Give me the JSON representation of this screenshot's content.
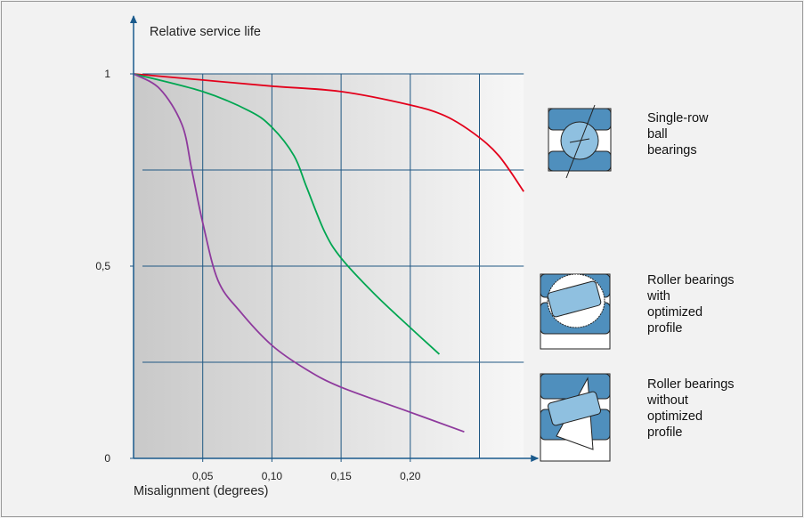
{
  "chart_data": {
    "type": "line",
    "ylabel": "Relative service life",
    "xlabel": "Misalignment (degrees)",
    "xlim": [
      0,
      0.282
    ],
    "ylim": [
      0,
      1
    ],
    "xticks": [
      {
        "value": 0.05,
        "label": "0,05"
      },
      {
        "value": 0.1,
        "label": "0,10"
      },
      {
        "value": 0.15,
        "label": "0,15"
      },
      {
        "value": 0.2,
        "label": "0,20"
      }
    ],
    "yticks": [
      0,
      {
        "value": 0.5,
        "label": "0,5"
      },
      1
    ],
    "xgrid": [
      0.05,
      0.1,
      0.15,
      0.2,
      0.25
    ],
    "ygrid": [
      0.25,
      0.5,
      0.75,
      1
    ],
    "series": [
      {
        "name": "Single-row\nball\nbearings",
        "color": "#e3001b",
        "x": [
          0,
          0.05,
          0.1,
          0.15,
          0.2,
          0.225,
          0.246,
          0.264,
          0.282
        ],
        "values": [
          1,
          0.984,
          0.968,
          0.954,
          0.919,
          0.891,
          0.845,
          0.787,
          0.694
        ]
      },
      {
        "name": "Roller bearings\nwith\noptimized\nprofile",
        "color": "#00a651",
        "x": [
          0,
          0.05,
          0.084,
          0.1,
          0.116,
          0.125,
          0.138,
          0.15,
          0.174,
          0.2,
          0.221
        ],
        "values": [
          1,
          0.954,
          0.903,
          0.861,
          0.787,
          0.706,
          0.59,
          0.521,
          0.428,
          0.34,
          0.271
        ]
      },
      {
        "name": "Roller bearings\nwithout\noptimized\nprofile",
        "color": "#8e3a9d",
        "x": [
          0,
          0.019,
          0.035,
          0.042,
          0.05,
          0.061,
          0.077,
          0.1,
          0.125,
          0.15,
          0.2,
          0.239
        ],
        "values": [
          1,
          0.961,
          0.868,
          0.752,
          0.613,
          0.463,
          0.382,
          0.294,
          0.231,
          0.185,
          0.12,
          0.069
        ]
      }
    ]
  }
}
